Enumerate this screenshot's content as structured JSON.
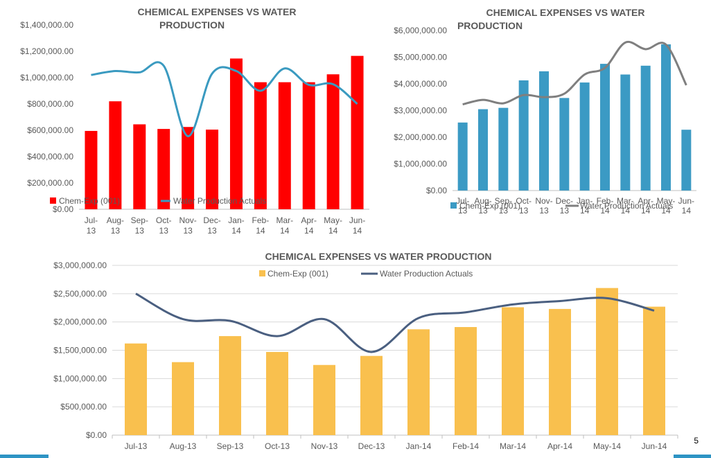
{
  "chart_data": [
    {
      "type": "bar",
      "title_lines": [
        "CHEMICAL EXPENSES VS WATER",
        "PRODUCTION"
      ],
      "categories": [
        "Jul-13",
        "Aug-13",
        "Sep-13",
        "Oct-13",
        "Nov-13",
        "Dec-13",
        "Jan-14",
        "Feb-14",
        "Mar-14",
        "Apr-14",
        "May-14",
        "Jun-14"
      ],
      "category_lines": [
        [
          "Jul-",
          "13"
        ],
        [
          "Aug-",
          "13"
        ],
        [
          "Sep-",
          "13"
        ],
        [
          "Oct-",
          "13"
        ],
        [
          "Nov-",
          "13"
        ],
        [
          "Dec-",
          "13"
        ],
        [
          "Jan-",
          "14"
        ],
        [
          "Feb-",
          "14"
        ],
        [
          "Mar-",
          "14"
        ],
        [
          "Apr-",
          "14"
        ],
        [
          "May-",
          "14"
        ],
        [
          "Jun-",
          "14"
        ]
      ],
      "ylim": [
        0,
        1400000
      ],
      "ytick_values": [
        0,
        200000,
        400000,
        600000,
        800000,
        1000000,
        1200000,
        1400000
      ],
      "ytick_labels": [
        "$0.00",
        "$200,000.00",
        "$400,000.00",
        "$600,000.00",
        "$800,000.00",
        "$1,000,000.00",
        "$1,200,000.00",
        "$1,400,000.00"
      ],
      "grid": false,
      "legend": "bottom",
      "series": [
        {
          "name": "Chem-Exp (001)",
          "kind": "bar",
          "color": "#ff0000",
          "values": [
            595000,
            820000,
            645000,
            610000,
            625000,
            605000,
            1145000,
            965000,
            965000,
            965000,
            1025000,
            1165000
          ]
        },
        {
          "name": "Water Production Actuals",
          "kind": "line",
          "color": "#3a9ac0",
          "values": [
            1020000,
            1050000,
            1040000,
            1090000,
            555000,
            1030000,
            1050000,
            900000,
            1070000,
            945000,
            950000,
            800000
          ]
        }
      ]
    },
    {
      "type": "bar",
      "title_lines": [
        "CHEMICAL EXPENSES VS WATER",
        "PRODUCTION"
      ],
      "categories": [
        "Jul-13",
        "Aug-13",
        "Sep-13",
        "Oct-13",
        "Nov-13",
        "Dec-13",
        "Jan-14",
        "Feb-14",
        "Mar-14",
        "Apr-14",
        "May-14",
        "Jun-14"
      ],
      "category_lines": [
        [
          "Jul-",
          "13"
        ],
        [
          "Aug-",
          "13"
        ],
        [
          "Sep-",
          "13"
        ],
        [
          "Oct-",
          "13"
        ],
        [
          "Nov-",
          "13"
        ],
        [
          "Dec-",
          "13"
        ],
        [
          "Jan-",
          "14"
        ],
        [
          "Feb-",
          "14"
        ],
        [
          "Mar-",
          "14"
        ],
        [
          "Apr-",
          "14"
        ],
        [
          "May-",
          "14"
        ],
        [
          "Jun-",
          "14"
        ]
      ],
      "ylim": [
        0,
        6000000
      ],
      "ytick_values": [
        0,
        1000000,
        2000000,
        3000000,
        4000000,
        5000000,
        6000000
      ],
      "ytick_labels": [
        "$0.00",
        "$1,000,000.00",
        "$2,000,000.00",
        "$3,000,000.00",
        "$4,000,000.00",
        "$5,000,000.00",
        "$6,000,000.00"
      ],
      "grid": false,
      "legend": "bottom",
      "series": [
        {
          "name": "Chem-Exp (001)",
          "kind": "bar",
          "color": "#3b9ac4",
          "values": [
            2550000,
            3050000,
            3100000,
            4130000,
            4470000,
            3470000,
            4050000,
            4750000,
            4350000,
            4680000,
            5480000,
            2280000
          ]
        },
        {
          "name": "Water Production Actuals",
          "kind": "line",
          "color": "#7f7f7f",
          "values": [
            3230000,
            3400000,
            3270000,
            3580000,
            3500000,
            3630000,
            4350000,
            4600000,
            5550000,
            5300000,
            5470000,
            3950000
          ]
        }
      ]
    },
    {
      "type": "bar",
      "title_lines": [
        "CHEMICAL EXPENSES VS WATER PRODUCTION"
      ],
      "categories": [
        "Jul-13",
        "Aug-13",
        "Sep-13",
        "Oct-13",
        "Nov-13",
        "Dec-13",
        "Jan-14",
        "Feb-14",
        "Mar-14",
        "Apr-14",
        "May-14",
        "Jun-14"
      ],
      "category_lines": [
        [
          "Jul-13"
        ],
        [
          "Aug-13"
        ],
        [
          "Sep-13"
        ],
        [
          "Oct-13"
        ],
        [
          "Nov-13"
        ],
        [
          "Dec-13"
        ],
        [
          "Jan-14"
        ],
        [
          "Feb-14"
        ],
        [
          "Mar-14"
        ],
        [
          "Apr-14"
        ],
        [
          "May-14"
        ],
        [
          "Jun-14"
        ]
      ],
      "ylim": [
        0,
        3000000
      ],
      "ytick_values": [
        0,
        500000,
        1000000,
        1500000,
        2000000,
        2500000,
        3000000
      ],
      "ytick_labels": [
        "$0.00",
        "$500,000.00",
        "$1,000,000.00",
        "$1,500,000.00",
        "$2,000,000.00",
        "$2,500,000.00",
        "$3,000,000.00"
      ],
      "grid": true,
      "legend": "top",
      "series": [
        {
          "name": "Chem-Exp (001)",
          "kind": "bar",
          "color": "#f9c04e",
          "values": [
            1620000,
            1290000,
            1750000,
            1470000,
            1240000,
            1400000,
            1870000,
            1910000,
            2260000,
            2230000,
            2600000,
            2270000
          ]
        },
        {
          "name": "Water Production Actuals",
          "kind": "line",
          "color": "#4a5f80",
          "values": [
            2500000,
            2050000,
            2020000,
            1750000,
            2050000,
            1470000,
            2070000,
            2170000,
            2310000,
            2370000,
            2420000,
            2200000
          ]
        }
      ]
    }
  ],
  "footer": {
    "page_number": "5",
    "accent_color": "#2e94c4"
  }
}
